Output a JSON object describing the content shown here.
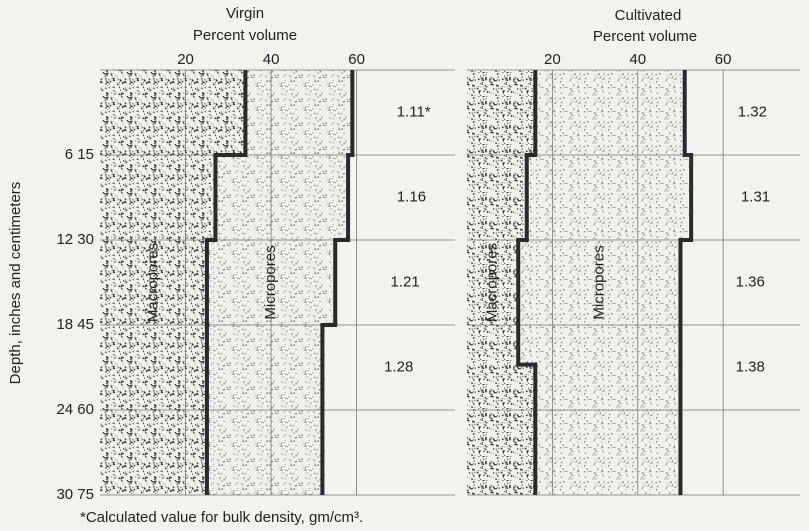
{
  "chart_data": [
    {
      "type": "stacked_step",
      "title": "Virgin",
      "subtitle": "Percent volume",
      "xlim": [
        0,
        83
      ],
      "xticks": [
        20,
        40,
        60
      ],
      "ylim": [
        0,
        75
      ],
      "yticks": [
        {
          "value": 15,
          "label": "6 15"
        },
        {
          "value": 30,
          "label": "12 30"
        },
        {
          "value": 45,
          "label": "18 45"
        },
        {
          "value": 60,
          "label": "24 60"
        },
        {
          "value": 75,
          "label": "30 75"
        }
      ],
      "ylabel": "Depth, inches and centimeters",
      "depth_bins": [
        0,
        15,
        30,
        45,
        75
      ],
      "series": [
        {
          "name": "Macropores",
          "color": "#3a3a3a",
          "values": [
            34,
            27,
            25,
            25
          ]
        },
        {
          "name": "Micropores",
          "color": "#8a8a8a",
          "values": [
            25,
            31,
            30,
            27
          ]
        }
      ],
      "bulk_density": {
        "values": [
          1.11,
          1.16,
          1.21,
          1.28
        ],
        "value_labels": [
          "1.11*",
          "1.16",
          "1.21",
          "1.28"
        ]
      }
    },
    {
      "type": "stacked_step",
      "title": "Cultivated",
      "subtitle": "Percent volume",
      "xlim": [
        0,
        78
      ],
      "xticks": [
        20,
        40,
        60
      ],
      "ylim": [
        0,
        75
      ],
      "depth_bins": [
        0,
        15,
        30,
        52,
        75
      ],
      "series": [
        {
          "name": "Macropores",
          "color": "#3a3a3a",
          "values": [
            16,
            14,
            12,
            16
          ]
        },
        {
          "name": "Micropores",
          "color": "#8a8a8a",
          "values": [
            35,
            38.5,
            38,
            34
          ]
        }
      ],
      "bulk_density": {
        "values": [
          1.32,
          1.31,
          1.36,
          1.38
        ],
        "value_labels": [
          "1.32",
          "1.31",
          "1.36",
          "1.38"
        ]
      }
    }
  ],
  "footnote": "*Calculated value for bulk density, gm/cm³."
}
